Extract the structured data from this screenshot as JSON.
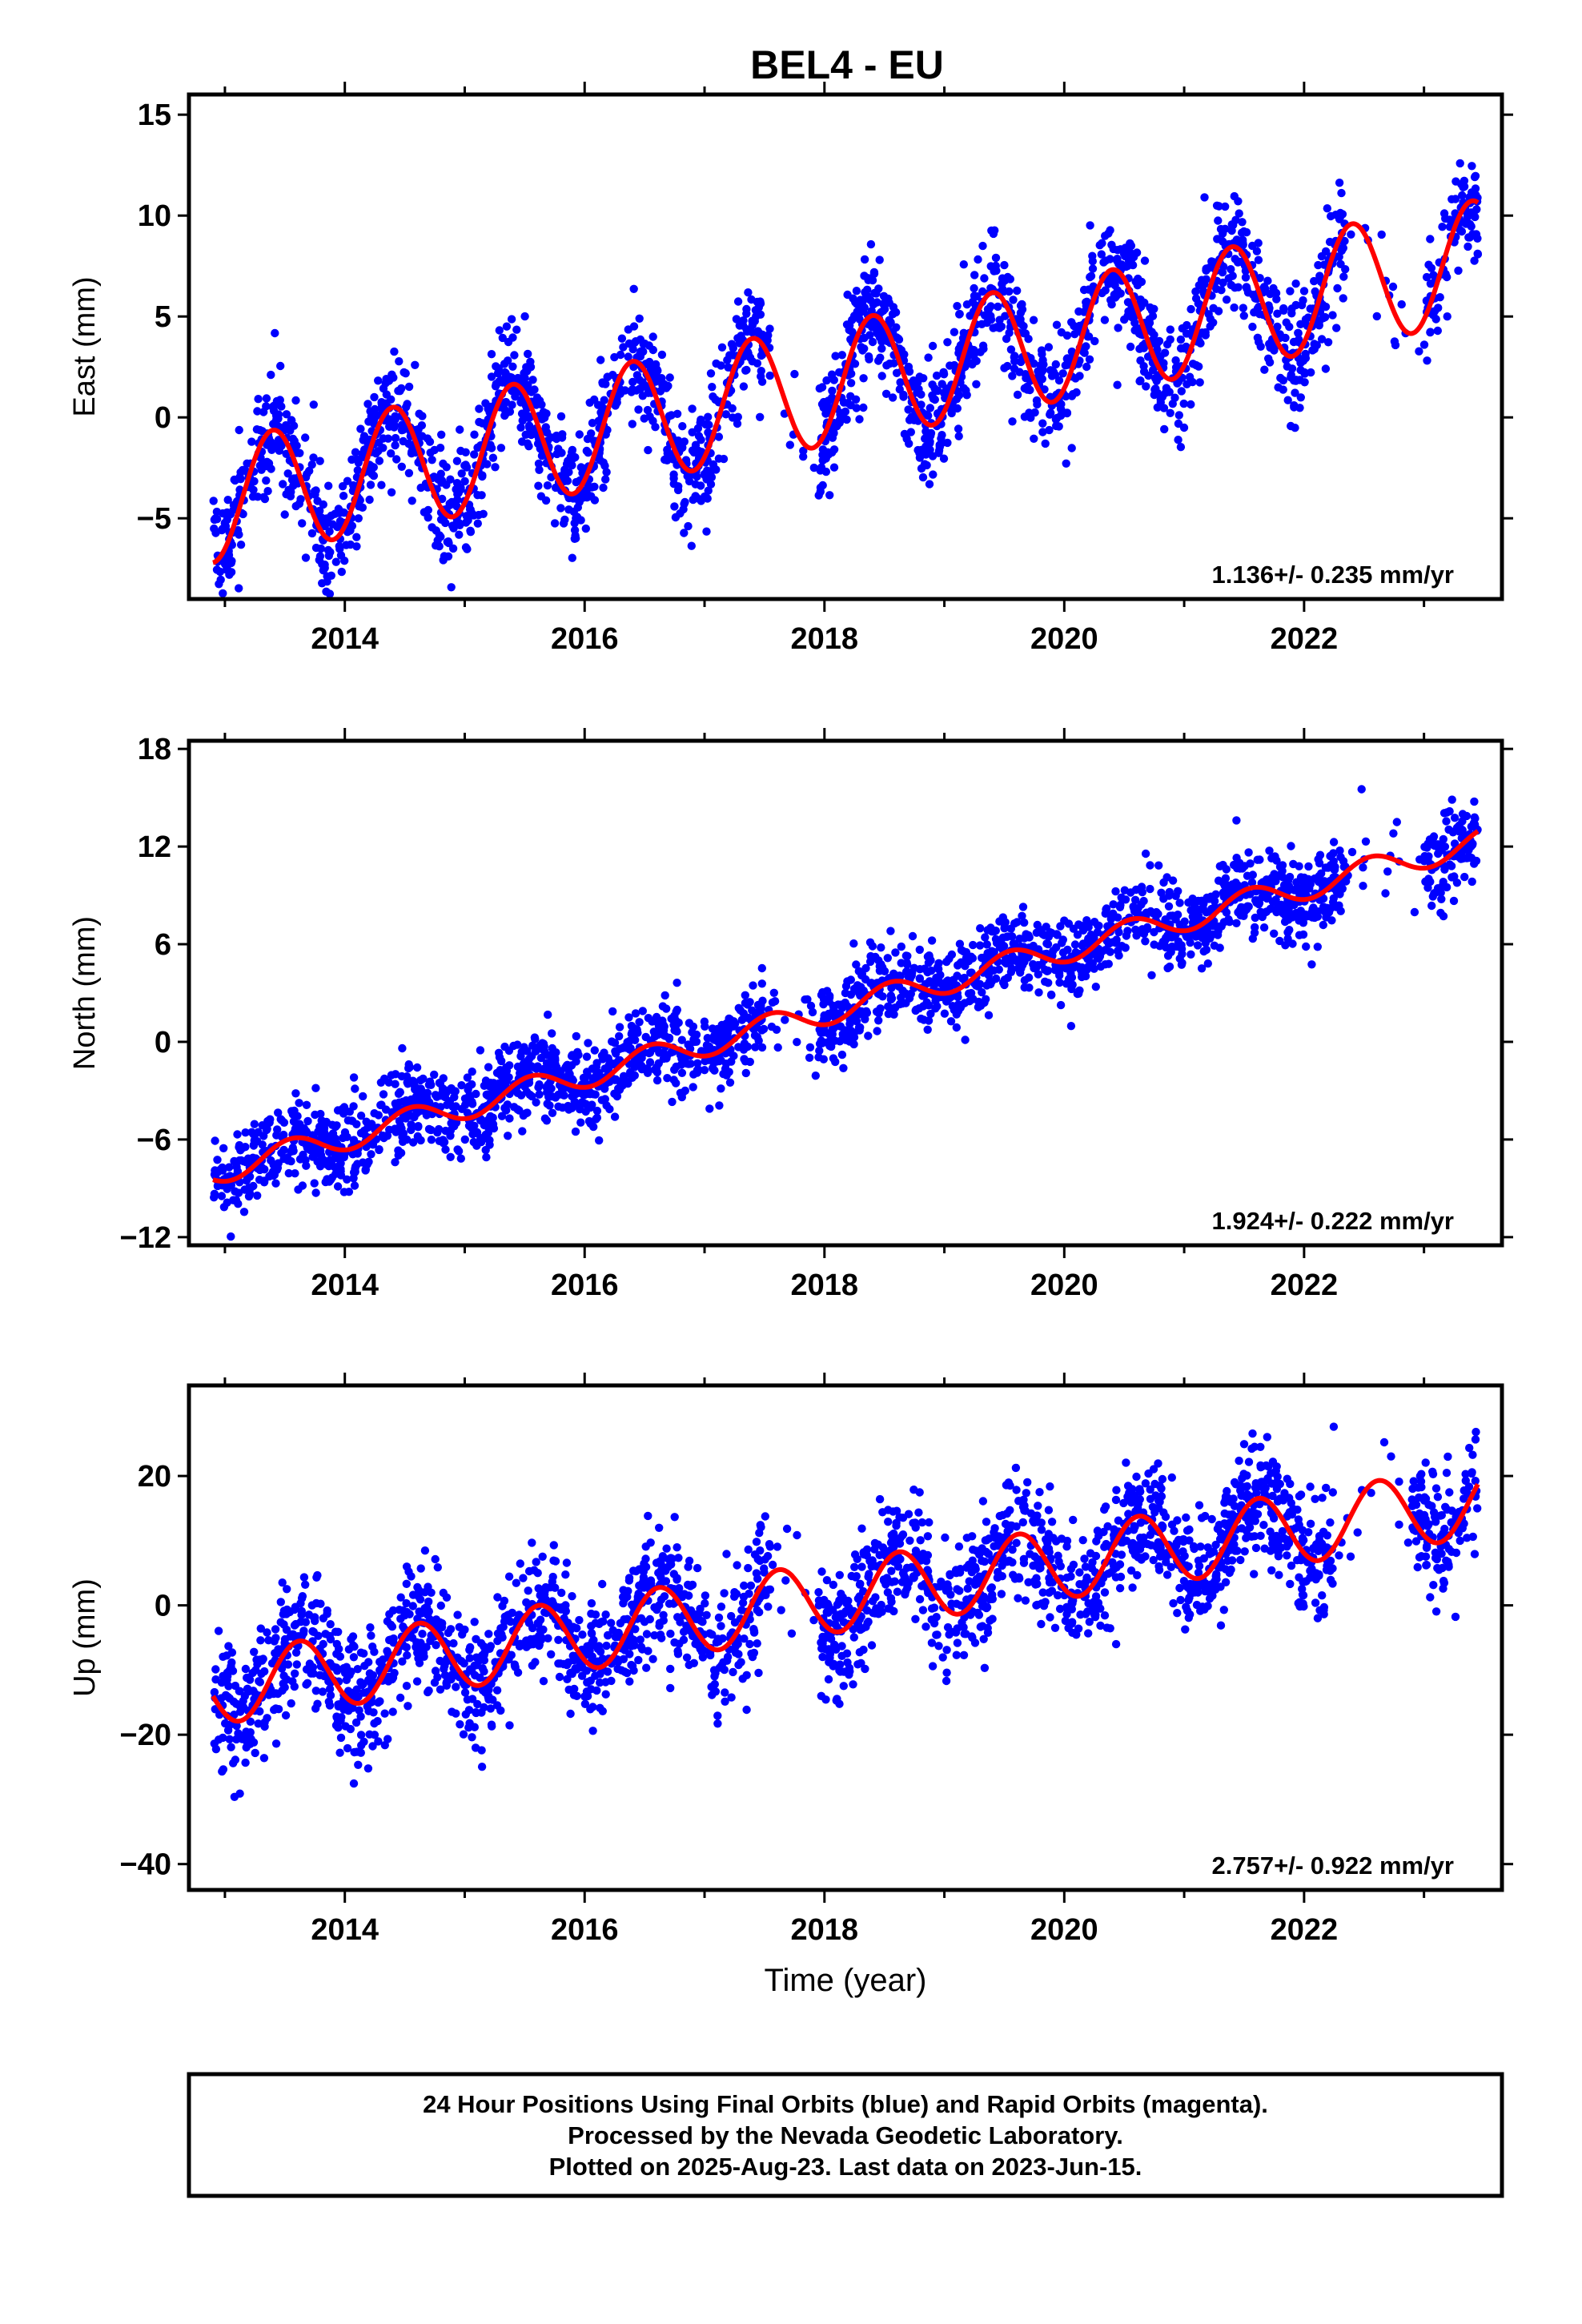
{
  "title": "BEL4 - EU",
  "xlabel": "Time (year)",
  "x_tick_labels": [
    "2014",
    "2016",
    "2018",
    "2020",
    "2022"
  ],
  "colors": {
    "points": "#0000ff",
    "model": "#ff0000",
    "frame": "#000000"
  },
  "footer": {
    "line1": "24 Hour Positions Using Final Orbits (blue) and Rapid Orbits (magenta).",
    "line2": "Processed by the Nevada Geodetic Laboratory.",
    "line3": "Plotted on 2025-Aug-23. Last data on 2023-Jun-15."
  },
  "chart_data": [
    {
      "type": "scatter",
      "component": "East",
      "ylabel": "East (mm)",
      "xlim": [
        2012.7,
        2023.65
      ],
      "ylim": [
        -9,
        16
      ],
      "y_ticks": [
        -5,
        0,
        5,
        10,
        15
      ],
      "y_tick_labels": [
        "−5",
        "0",
        "5",
        "10",
        "15"
      ],
      "rate_annotation": "1.136+/- 0.235 mm/yr",
      "data_start": 2012.9,
      "data_end": 2023.45,
      "model_start": 2012.9,
      "model_end": 2023.45,
      "gaps": [
        [
          2017.5,
          2017.95
        ],
        [
          2022.35,
          2023.0
        ]
      ],
      "model": {
        "rate_mm_per_yr": 1.136,
        "intercept_at_start": -4.2,
        "annual_amp": 3.0,
        "peak_phase_year_fraction": 0.4
      },
      "points_model_relation": "scatter about model, sigma ~1.4 mm",
      "scatter_sigma": 1.4,
      "point_count": 2600
    },
    {
      "type": "scatter",
      "component": "North",
      "ylabel": "North (mm)",
      "xlim": [
        2012.7,
        2023.65
      ],
      "ylim": [
        -12.5,
        18.5
      ],
      "y_ticks": [
        -12,
        -6,
        0,
        6,
        12,
        18
      ],
      "y_tick_labels": [
        "−12",
        "−6",
        "0",
        "6",
        "12",
        "18"
      ],
      "rate_annotation": "1.924+/- 0.222 mm/yr",
      "data_start": 2012.9,
      "data_end": 2023.45,
      "model_start": 2012.9,
      "model_end": 2023.45,
      "gaps": [
        [
          2017.5,
          2017.95
        ],
        [
          2022.35,
          2023.0
        ]
      ],
      "model": {
        "rate_mm_per_yr": 1.924,
        "intercept_at_start": -8.0,
        "annual_amp": 0.8,
        "peak_phase_year_fraction": 0.55
      },
      "points_model_relation": "scatter about model, sigma ~1.3 mm",
      "scatter_sigma": 1.3,
      "point_count": 2600
    },
    {
      "type": "scatter",
      "component": "Up",
      "ylabel": "Up (mm)",
      "xlim": [
        2012.7,
        2023.65
      ],
      "ylim": [
        -44,
        34
      ],
      "y_ticks": [
        -40,
        -20,
        0,
        20
      ],
      "y_tick_labels": [
        "−40",
        "−20",
        "0",
        "20"
      ],
      "rate_annotation": "2.757+/- 0.922 mm/yr",
      "data_start": 2012.9,
      "data_end": 2023.45,
      "model_start": 2012.9,
      "model_end": 2023.45,
      "gaps": [
        [
          2017.55,
          2017.95
        ],
        [
          2022.25,
          2022.9
        ]
      ],
      "model": {
        "rate_mm_per_yr": 2.757,
        "intercept_at_start": -13.0,
        "annual_amp": 5.5,
        "peak_phase_year_fraction": 0.62
      },
      "points_model_relation": "scatter about model, sigma ~5 mm",
      "scatter_sigma": 5.0,
      "point_count": 2600
    }
  ]
}
